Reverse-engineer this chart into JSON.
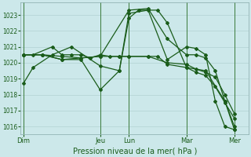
{
  "background_color": "#cce8ea",
  "grid_color": "#aacccc",
  "line_color": "#1a5c1a",
  "xlabel": "Pression niveau de la mer( hPa )",
  "ylim": [
    1015.5,
    1023.8
  ],
  "yticks": [
    1016,
    1017,
    1018,
    1019,
    1020,
    1021,
    1022,
    1023
  ],
  "day_labels": [
    "Dim",
    "Jeu",
    "Lun",
    "Mar",
    "Mer"
  ],
  "day_positions": [
    0,
    8,
    11,
    17,
    22
  ],
  "xlim": [
    -0.3,
    23.5
  ],
  "series": [
    {
      "x": [
        0,
        1,
        3,
        5,
        8,
        10,
        11,
        12,
        14,
        15,
        17,
        19,
        21,
        22
      ],
      "y": [
        1018.7,
        1019.7,
        1020.5,
        1021.0,
        1019.8,
        1019.5,
        1022.8,
        1023.3,
        1023.3,
        1022.5,
        1019.7,
        1019.5,
        1017.6,
        1016.0
      ]
    },
    {
      "x": [
        0,
        2,
        4,
        6,
        8,
        10,
        11,
        13,
        15,
        17,
        18,
        19,
        20,
        21,
        22
      ],
      "y": [
        1020.5,
        1020.5,
        1020.4,
        1020.3,
        1020.4,
        1020.4,
        1020.4,
        1020.4,
        1020.0,
        1019.9,
        1019.6,
        1019.4,
        1019.1,
        1018.0,
        1016.8
      ]
    },
    {
      "x": [
        0,
        2,
        4,
        6,
        8,
        10,
        11,
        13,
        15,
        17,
        18,
        19,
        20,
        21,
        22
      ],
      "y": [
        1020.5,
        1020.5,
        1020.2,
        1020.2,
        1018.3,
        1019.5,
        1023.1,
        1023.3,
        1020.2,
        1021.0,
        1020.9,
        1020.5,
        1017.6,
        1016.0,
        1015.8
      ]
    },
    {
      "x": [
        0,
        2,
        4,
        8,
        11,
        13,
        15,
        17,
        18,
        19,
        20,
        21,
        22
      ],
      "y": [
        1020.5,
        1020.5,
        1020.2,
        1020.4,
        1023.3,
        1023.4,
        1021.5,
        1020.5,
        1020.5,
        1020.3,
        1019.5,
        1017.6,
        1015.8
      ]
    },
    {
      "x": [
        0,
        1,
        3,
        4,
        5,
        6,
        7,
        8,
        9,
        10,
        11,
        13,
        14,
        15,
        17,
        18,
        19,
        20,
        21,
        22
      ],
      "y": [
        1020.5,
        1020.5,
        1021.0,
        1020.5,
        1020.5,
        1020.5,
        1020.3,
        1020.5,
        1020.4,
        1020.4,
        1020.4,
        1020.4,
        1020.4,
        1019.9,
        1019.7,
        1019.4,
        1019.2,
        1018.5,
        1017.5,
        1016.5
      ]
    }
  ]
}
